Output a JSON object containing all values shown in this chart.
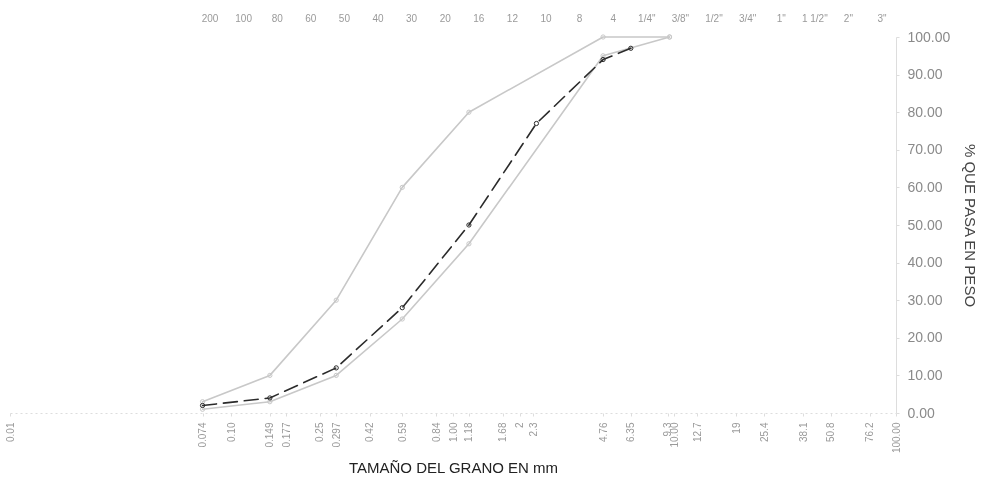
{
  "chart_data": {
    "type": "line",
    "xlabel": "TAMAÑO DEL GRANO EN mm",
    "ylabel": "% QUE PASA EN PESO",
    "log": "x",
    "marker": "circle",
    "xlim": [
      0.01,
      100
    ],
    "xticks": [
      {
        "value": 0.01,
        "label": "0.01"
      },
      0.074,
      {
        "value": 0.1,
        "label": "0.10"
      },
      0.149,
      0.177,
      0.25,
      0.297,
      0.42,
      0.59,
      0.84,
      {
        "value": 1,
        "label": "1.00"
      },
      1.18,
      1.68,
      2,
      2.3,
      4.76,
      6.35,
      9.3,
      {
        "value": 10,
        "label": "10.00"
      },
      12.7,
      19,
      25.4,
      38.1,
      50.8,
      76.2,
      {
        "value": 100,
        "label": "100.00"
      }
    ],
    "ylim": [
      0,
      100
    ],
    "yticks": [
      {
        "value": 0,
        "label": "0.00"
      },
      {
        "value": 10,
        "label": "10.00"
      },
      {
        "value": 20,
        "label": "20.00"
      },
      {
        "value": 30,
        "label": "30.00"
      },
      {
        "value": 40,
        "label": "40.00"
      },
      {
        "value": 50,
        "label": "50.00"
      },
      {
        "value": 60,
        "label": "60.00"
      },
      {
        "value": 70,
        "label": "70.00"
      },
      {
        "value": 80,
        "label": "80.00"
      },
      {
        "value": 90,
        "label": "90.00"
      },
      {
        "value": 100,
        "label": "100.00"
      }
    ],
    "annotations": [
      "200",
      "100",
      "80",
      "60",
      "50",
      "40",
      "30",
      "20",
      "16",
      "12",
      "10",
      "8",
      "4",
      "1/4\"",
      "3/8\"",
      "1/2\"",
      "3/4\"",
      "1\"",
      "1 1/2\"",
      "2\"",
      "3\""
    ],
    "series": [
      {
        "color": "#c8c8c8",
        "line_style": "solid",
        "x": [
          0.074,
          0.149,
          0.297,
          0.59,
          1.18,
          4.76,
          9.5
        ],
        "values": [
          3,
          10,
          30,
          60,
          80,
          100,
          100
        ]
      },
      {
        "color": "#c8c8c8",
        "line_style": "solid",
        "x": [
          0.074,
          0.149,
          0.297,
          0.59,
          1.18,
          4.76,
          9.5
        ],
        "values": [
          1,
          3,
          10,
          25,
          45,
          95,
          100
        ]
      },
      {
        "color": "#2b2b2b",
        "line_style": "dashed",
        "x": [
          0.074,
          0.149,
          0.297,
          0.59,
          1.18,
          2.38,
          4.76,
          6.35
        ],
        "values": [
          2,
          4,
          12,
          28,
          50,
          77,
          94,
          97
        ]
      }
    ]
  }
}
